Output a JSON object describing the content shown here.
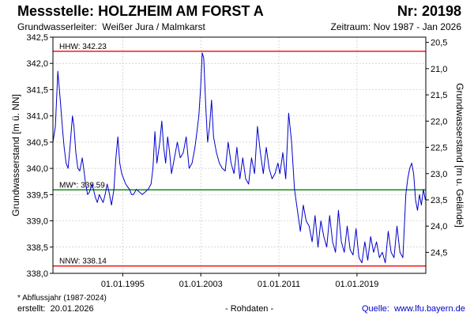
{
  "header": {
    "title_label": "Messstelle:",
    "station": "HOLZHEIM AM FORST A",
    "nr_label": "Nr:",
    "nr": "20198",
    "aquifer_label": "Grundwasserleiter:",
    "aquifer": "Weißer Jura / Malmkarst",
    "period_label": "Zeitraum:",
    "period": "Nov 1987 - Jan 2026"
  },
  "footer": {
    "footnote": "* Abflussjahr (1987-2024)",
    "created_label": "erstellt:",
    "created": "20.01.2026",
    "raw": "- Rohdaten -",
    "source_label": "Quelle:",
    "source": "www.lfu.bayern.de"
  },
  "colors": {
    "series": "#0000cc",
    "extreme_lines": "#ff0000",
    "mean_line": "#008000",
    "grid": "#c8c8c8"
  },
  "chart_data": {
    "type": "line",
    "xlabel": "",
    "ylabel": "Grundwasserstand [m ü. NN]",
    "y2label": "Grundwasserstand [m u. Gelände]",
    "xlim": [
      1987.85,
      2026.05
    ],
    "ylim": [
      338.0,
      342.5
    ],
    "y2lim": [
      24.9,
      20.4
    ],
    "x_ticks": [
      {
        "x": 1995.0,
        "label": "01.01.1995"
      },
      {
        "x": 2003.0,
        "label": "01.01.2003"
      },
      {
        "x": 2011.0,
        "label": "01.01.2011"
      },
      {
        "x": 2019.0,
        "label": "01.01.2019"
      }
    ],
    "y_ticks": [
      338.0,
      338.5,
      339.0,
      339.5,
      340.0,
      340.5,
      341.0,
      341.5,
      342.0,
      342.5
    ],
    "y_tick_labels": [
      "338,0",
      "338,5",
      "339,0",
      "339,5",
      "340,0",
      "340,5",
      "341,0",
      "341,5",
      "342,0",
      "342,5"
    ],
    "y2_ticks": [
      20.5,
      21.0,
      21.5,
      22.0,
      22.5,
      23.0,
      23.5,
      24.0,
      24.5
    ],
    "y2_tick_labels": [
      "20,5",
      "21,0",
      "21,5",
      "22,0",
      "22,5",
      "23,0",
      "23,5",
      "24,0",
      "24,5"
    ],
    "grid": true,
    "reference_lines": [
      {
        "label": "HHW: 342.23",
        "y": 342.23,
        "kind": "extreme"
      },
      {
        "label": "MW*: 339.59",
        "y": 339.59,
        "kind": "mean"
      },
      {
        "label": "NNW: 338.14",
        "y": 338.14,
        "kind": "extreme"
      }
    ],
    "series": [
      {
        "x": [
          1987.85,
          1988.1,
          1988.35,
          1988.6,
          1988.85,
          1989.0,
          1989.2,
          1989.4,
          1989.6,
          1989.85,
          1990.0,
          1990.2,
          1990.4,
          1990.6,
          1990.85,
          1991.0,
          1991.2,
          1991.4,
          1991.6,
          1991.85,
          1992.0,
          1992.2,
          1992.4,
          1992.6,
          1992.85,
          1993.0,
          1993.2,
          1993.4,
          1993.6,
          1993.85,
          1994.1,
          1994.3,
          1994.5,
          1994.7,
          1994.9,
          1995.1,
          1995.3,
          1995.5,
          1995.7,
          1995.9,
          1996.1,
          1996.4,
          1996.7,
          1997.0,
          1997.3,
          1997.6,
          1997.9,
          1998.1,
          1998.3,
          1998.5,
          1998.8,
          1999.0,
          1999.2,
          1999.4,
          1999.6,
          1999.8,
          2000.0,
          2000.3,
          2000.6,
          2000.9,
          2001.2,
          2001.5,
          2001.8,
          2002.1,
          2002.4,
          2002.6,
          2002.8,
          2003.0,
          2003.15,
          2003.3,
          2003.5,
          2003.7,
          2003.9,
          2004.1,
          2004.3,
          2004.6,
          2004.9,
          2005.2,
          2005.5,
          2005.8,
          2006.1,
          2006.4,
          2006.7,
          2007.0,
          2007.3,
          2007.6,
          2007.9,
          2008.2,
          2008.5,
          2008.8,
          2009.1,
          2009.4,
          2009.7,
          2010.0,
          2010.3,
          2010.6,
          2010.9,
          2011.1,
          2011.4,
          2011.7,
          2012.0,
          2012.3,
          2012.6,
          2012.9,
          2013.2,
          2013.5,
          2013.8,
          2014.1,
          2014.4,
          2014.7,
          2015.0,
          2015.3,
          2015.6,
          2015.9,
          2016.2,
          2016.5,
          2016.8,
          2017.1,
          2017.4,
          2017.7,
          2018.0,
          2018.3,
          2018.6,
          2018.9,
          2019.2,
          2019.5,
          2019.8,
          2020.1,
          2020.4,
          2020.7,
          2021.0,
          2021.3,
          2021.6,
          2021.9,
          2022.2,
          2022.5,
          2022.8,
          2023.1,
          2023.4,
          2023.7,
          2024.0,
          2024.2,
          2024.4,
          2024.6,
          2024.8,
          2025.0,
          2025.2,
          2025.4,
          2025.6,
          2025.8,
          2026.0
        ],
        "y": [
          340.5,
          340.8,
          341.85,
          341.3,
          340.7,
          340.4,
          340.1,
          340.0,
          340.4,
          341.0,
          340.8,
          340.3,
          340.0,
          339.95,
          340.2,
          340.0,
          339.7,
          339.5,
          339.55,
          339.7,
          339.6,
          339.45,
          339.35,
          339.5,
          339.4,
          339.35,
          339.5,
          339.7,
          339.55,
          339.3,
          339.6,
          340.2,
          340.6,
          340.1,
          339.9,
          339.8,
          339.7,
          339.65,
          339.6,
          339.5,
          339.5,
          339.6,
          339.55,
          339.5,
          339.55,
          339.6,
          339.7,
          340.0,
          340.7,
          340.1,
          340.5,
          340.9,
          340.4,
          340.1,
          340.6,
          340.3,
          339.9,
          340.2,
          340.5,
          340.2,
          340.3,
          340.6,
          340.0,
          340.1,
          340.4,
          340.7,
          341.0,
          341.6,
          342.2,
          342.1,
          341.2,
          340.5,
          340.8,
          341.3,
          340.6,
          340.3,
          340.1,
          340.0,
          339.95,
          340.5,
          340.1,
          339.9,
          340.4,
          339.8,
          340.2,
          339.8,
          339.7,
          340.2,
          339.9,
          340.8,
          340.3,
          339.9,
          340.4,
          340.0,
          339.8,
          339.9,
          340.1,
          339.9,
          340.3,
          339.8,
          341.05,
          340.5,
          339.6,
          339.2,
          338.8,
          339.3,
          339.0,
          338.9,
          338.6,
          339.1,
          338.5,
          339.0,
          338.7,
          338.5,
          339.1,
          338.6,
          338.4,
          339.2,
          338.6,
          338.4,
          338.9,
          338.45,
          338.35,
          338.85,
          338.3,
          338.2,
          338.6,
          338.25,
          338.7,
          338.4,
          338.6,
          338.3,
          338.4,
          338.2,
          338.8,
          338.4,
          338.3,
          338.9,
          338.4,
          338.3,
          339.5,
          339.8,
          340.0,
          340.1,
          339.9,
          339.4,
          339.2,
          339.5,
          339.3,
          339.6,
          339.4
        ]
      }
    ]
  }
}
